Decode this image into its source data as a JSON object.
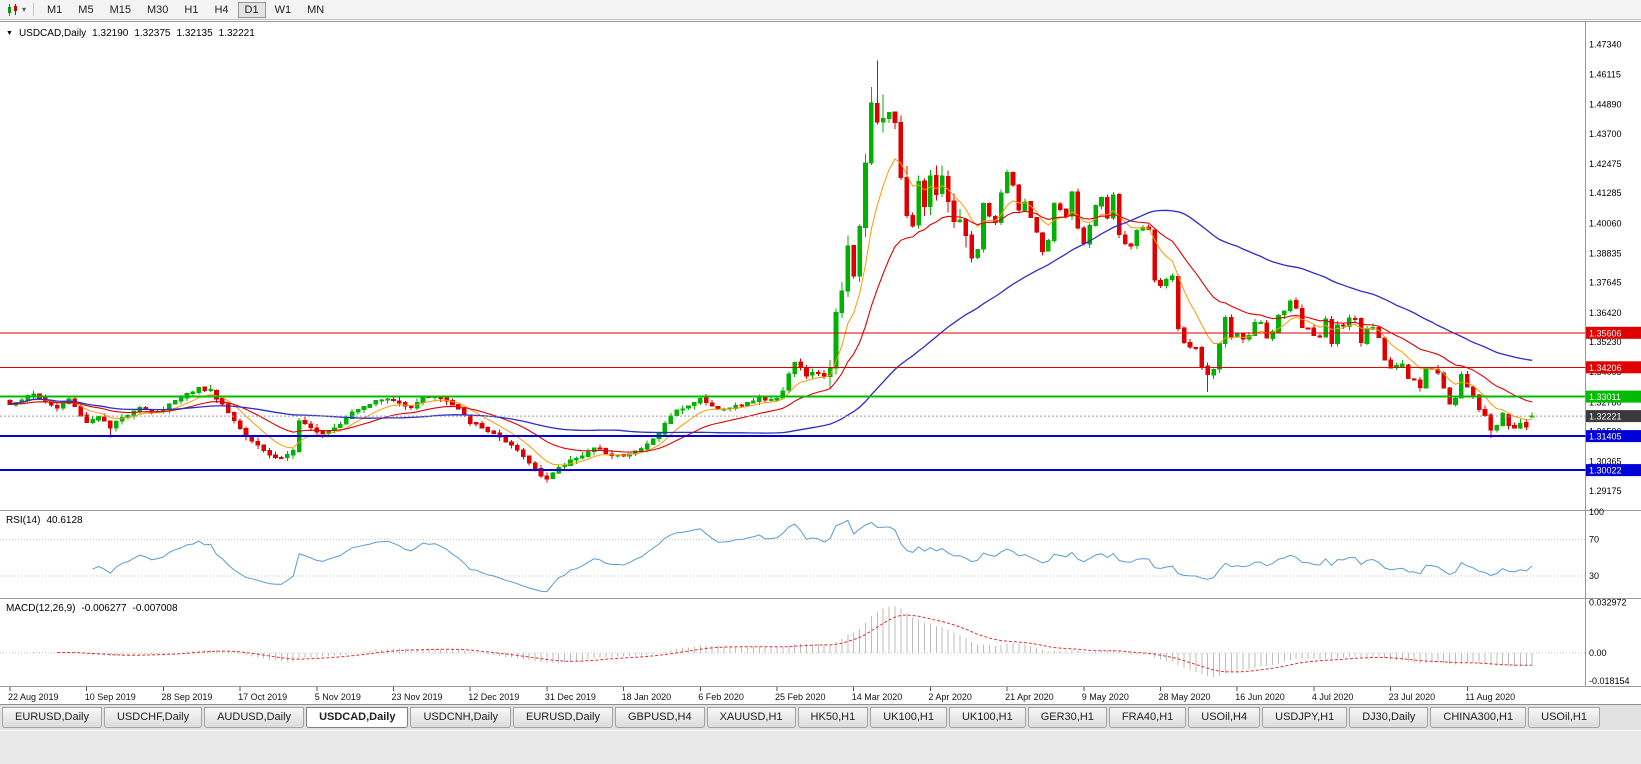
{
  "toolbar": {
    "timeframes": [
      {
        "label": "M1",
        "active": false
      },
      {
        "label": "M5",
        "active": false
      },
      {
        "label": "M15",
        "active": false
      },
      {
        "label": "M30",
        "active": false
      },
      {
        "label": "H1",
        "active": false
      },
      {
        "label": "H4",
        "active": false
      },
      {
        "label": "D1",
        "active": true
      },
      {
        "label": "W1",
        "active": false
      },
      {
        "label": "MN",
        "active": false
      }
    ]
  },
  "chart": {
    "title": {
      "symbol": "USDCAD,Daily",
      "open": "1.32190",
      "high": "1.32375",
      "low": "1.32135",
      "close": "1.32221"
    },
    "levels": [
      {
        "name": "resistance-upper",
        "value": 1.35606,
        "label": "1.35606",
        "color": "#E00000",
        "width": 1
      },
      {
        "name": "resistance-lower",
        "value": 1.34206,
        "label": "1.34206",
        "color": "#E00000",
        "width": 1
      },
      {
        "name": "pivot-green",
        "value": 1.33011,
        "label": "1.33011",
        "color": "#00BB00",
        "width": 2
      },
      {
        "name": "support-upper",
        "value": 1.31405,
        "label": "1.31405",
        "color": "#0000D8",
        "width": 2
      },
      {
        "name": "support-lower",
        "value": 1.30022,
        "label": "1.30022",
        "color": "#0000D8",
        "width": 2
      }
    ],
    "current_price": {
      "value": 1.32221,
      "label": "1.32221",
      "tag_color": "#3A3A3A"
    }
  },
  "rsi": {
    "label": "RSI(14)",
    "value": "40.6128",
    "scale": [
      "100",
      "70",
      "30"
    ],
    "levels": [
      70,
      30
    ],
    "line_color": "#5B9BD5"
  },
  "macd": {
    "label": "MACD(12,26,9)",
    "value_main": "-0.006277",
    "value_signal": "-0.007008",
    "scale": [
      "0.032972",
      "0.00",
      "-0.018154"
    ],
    "range": {
      "max": 0.0345,
      "min": -0.0215
    }
  },
  "tabs": [
    {
      "label": "EURUSD,Daily",
      "active": false
    },
    {
      "label": "USDCHF,Daily",
      "active": false
    },
    {
      "label": "AUDUSD,Daily",
      "active": false
    },
    {
      "label": "USDCAD,Daily",
      "active": true
    },
    {
      "label": "USDCNH,Daily",
      "active": false
    },
    {
      "label": "EURUSD,Daily",
      "active": false
    },
    {
      "label": "GBPUSD,H4",
      "active": false
    },
    {
      "label": "XAUUSD,H1",
      "active": false
    },
    {
      "label": "HK50,H1",
      "active": false
    },
    {
      "label": "UK100,H1",
      "active": false
    },
    {
      "label": "UK100,H1",
      "active": false
    },
    {
      "label": "GER30,H1",
      "active": false
    },
    {
      "label": "FRA40,H1",
      "active": false
    },
    {
      "label": "USOil,H4",
      "active": false
    },
    {
      "label": "USDJPY,H1",
      "active": false
    },
    {
      "label": "DJ30,Daily",
      "active": false
    },
    {
      "label": "CHINA300,H1",
      "active": false
    },
    {
      "label": "USOil,H1",
      "active": false
    }
  ],
  "chart_data": {
    "type": "candlestick",
    "title": "USDCAD,Daily",
    "symbol": "USDCAD",
    "timeframe": "Daily",
    "current_ohlc": {
      "open": 1.3219,
      "high": 1.32375,
      "low": 1.32135,
      "close": 1.32221
    },
    "candle_count": 259,
    "x_axis": {
      "labels": [
        "22 Aug 2019",
        "10 Sep 2019",
        "28 Sep 2019",
        "17 Oct 2019",
        "5 Nov 2019",
        "23 Nov 2019",
        "12 Dec 2019",
        "31 Dec 2019",
        "18 Jan 2020",
        "6 Feb 2020",
        "25 Feb 2020",
        "14 Mar 2020",
        "2 Apr 2020",
        "21 Apr 2020",
        "9 May 2020",
        "28 May 2020",
        "16 Jun 2020",
        "4 Jul 2020",
        "23 Jul 2020",
        "11 Aug 2020"
      ],
      "candles_per_label": 13
    },
    "y_axis": {
      "min": 1.284,
      "max": 1.4825,
      "tick_labels": [
        "1.47340",
        "1.46115",
        "1.44890",
        "1.43700",
        "1.42475",
        "1.41285",
        "1.40060",
        "1.38835",
        "1.37645",
        "1.36420",
        "1.35230",
        "1.34005",
        "1.32780",
        "1.31590",
        "1.30365",
        "1.29175"
      ]
    },
    "horizontal_levels": [
      1.35606,
      1.34206,
      1.33011,
      1.31405,
      1.30022
    ],
    "close_anchors": [
      [
        0,
        1.327
      ],
      [
        2,
        1.3292
      ],
      [
        4,
        1.331
      ],
      [
        6,
        1.328
      ],
      [
        8,
        1.3255
      ],
      [
        10,
        1.329
      ],
      [
        13,
        1.3196
      ],
      [
        15,
        1.3225
      ],
      [
        17,
        1.3172
      ],
      [
        19,
        1.3215
      ],
      [
        22,
        1.3262
      ],
      [
        24,
        1.3238
      ],
      [
        26,
        1.3245
      ],
      [
        28,
        1.329
      ],
      [
        30,
        1.3312
      ],
      [
        32,
        1.3335
      ],
      [
        34,
        1.3325
      ],
      [
        36,
        1.327
      ],
      [
        38,
        1.3205
      ],
      [
        40,
        1.3145
      ],
      [
        42,
        1.3108
      ],
      [
        44,
        1.3062
      ],
      [
        46,
        1.3052
      ],
      [
        48,
        1.3082
      ],
      [
        49,
        1.3198
      ],
      [
        51,
        1.3172
      ],
      [
        53,
        1.3155
      ],
      [
        56,
        1.3192
      ],
      [
        58,
        1.3242
      ],
      [
        60,
        1.3265
      ],
      [
        62,
        1.3282
      ],
      [
        64,
        1.3292
      ],
      [
        66,
        1.3275
      ],
      [
        68,
        1.3262
      ],
      [
        70,
        1.3298
      ],
      [
        72,
        1.3305
      ],
      [
        74,
        1.3282
      ],
      [
        76,
        1.3248
      ],
      [
        78,
        1.3198
      ],
      [
        80,
        1.3172
      ],
      [
        82,
        1.3152
      ],
      [
        84,
        1.3112
      ],
      [
        86,
        1.3082
      ],
      [
        88,
        1.3032
      ],
      [
        90,
        1.2985
      ],
      [
        91,
        1.2968
      ],
      [
        93,
        1.3008
      ],
      [
        95,
        1.3042
      ],
      [
        97,
        1.3065
      ],
      [
        99,
        1.3088
      ],
      [
        101,
        1.3075
      ],
      [
        104,
        1.3058
      ],
      [
        106,
        1.3078
      ],
      [
        108,
        1.3105
      ],
      [
        110,
        1.3152
      ],
      [
        112,
        1.3228
      ],
      [
        114,
        1.3258
      ],
      [
        117,
        1.329
      ],
      [
        119,
        1.3262
      ],
      [
        121,
        1.3248
      ],
      [
        123,
        1.3262
      ],
      [
        125,
        1.3278
      ],
      [
        127,
        1.3292
      ],
      [
        130,
        1.3295
      ],
      [
        131,
        1.3322
      ],
      [
        132,
        1.3388
      ],
      [
        133,
        1.3442
      ],
      [
        134,
        1.3415
      ],
      [
        135,
        1.3388
      ],
      [
        136,
        1.3402
      ],
      [
        138,
        1.338
      ],
      [
        139,
        1.342
      ],
      [
        140,
        1.366
      ],
      [
        141,
        1.373
      ],
      [
        142,
        1.393
      ],
      [
        143,
        1.38
      ],
      [
        144,
        1.3985
      ],
      [
        145,
        1.4245
      ],
      [
        146,
        1.4495
      ],
      [
        147,
        1.4435
      ],
      [
        148,
        1.443
      ],
      [
        149,
        1.4465
      ],
      [
        150,
        1.4435
      ],
      [
        151,
        1.418
      ],
      [
        152,
        1.4055
      ],
      [
        153,
        1.3985
      ],
      [
        154,
        1.4185
      ],
      [
        155,
        1.406
      ],
      [
        156,
        1.4215
      ],
      [
        157,
        1.4135
      ],
      [
        158,
        1.421
      ],
      [
        159,
        1.409
      ],
      [
        160,
        1.402
      ],
      [
        161,
        1.4015
      ],
      [
        162,
        1.396
      ],
      [
        163,
        1.386
      ],
      [
        164,
        1.3895
      ],
      [
        165,
        1.409
      ],
      [
        166,
        1.404
      ],
      [
        167,
        1.4005
      ],
      [
        168,
        1.4125
      ],
      [
        169,
        1.421
      ],
      [
        170,
        1.416
      ],
      [
        171,
        1.406
      ],
      [
        172,
        1.409
      ],
      [
        173,
        1.4035
      ],
      [
        174,
        1.3965
      ],
      [
        175,
        1.3885
      ],
      [
        176,
        1.394
      ],
      [
        177,
        1.409
      ],
      [
        178,
        1.407
      ],
      [
        179,
        1.4035
      ],
      [
        180,
        1.414
      ],
      [
        181,
        1.3985
      ],
      [
        182,
        1.3925
      ],
      [
        183,
        1.399
      ],
      [
        184,
        1.408
      ],
      [
        185,
        1.411
      ],
      [
        186,
        1.4035
      ],
      [
        187,
        1.4115
      ],
      [
        188,
        1.3965
      ],
      [
        189,
        1.3925
      ],
      [
        190,
        1.3915
      ],
      [
        191,
        1.3975
      ],
      [
        192,
        1.3995
      ],
      [
        193,
        1.3985
      ],
      [
        194,
        1.378
      ],
      [
        195,
        1.3755
      ],
      [
        196,
        1.3775
      ],
      [
        197,
        1.3785
      ],
      [
        198,
        1.358
      ],
      [
        199,
        1.3525
      ],
      [
        200,
        1.3505
      ],
      [
        201,
        1.3495
      ],
      [
        202,
        1.3425
      ],
      [
        203,
        1.3385
      ],
      [
        204,
        1.3415
      ],
      [
        206,
        1.362
      ],
      [
        207,
        1.3545
      ],
      [
        208,
        1.3555
      ],
      [
        209,
        1.3535
      ],
      [
        210,
        1.3545
      ],
      [
        211,
        1.3605
      ],
      [
        212,
        1.3605
      ],
      [
        213,
        1.3535
      ],
      [
        214,
        1.356
      ],
      [
        215,
        1.363
      ],
      [
        216,
        1.3645
      ],
      [
        217,
        1.3685
      ],
      [
        218,
        1.3665
      ],
      [
        219,
        1.3585
      ],
      [
        220,
        1.3575
      ],
      [
        221,
        1.355
      ],
      [
        222,
        1.3545
      ],
      [
        223,
        1.361
      ],
      [
        224,
        1.3515
      ],
      [
        225,
        1.359
      ],
      [
        226,
        1.3595
      ],
      [
        227,
        1.362
      ],
      [
        228,
        1.3615
      ],
      [
        229,
        1.3515
      ],
      [
        230,
        1.3575
      ],
      [
        231,
        1.3585
      ],
      [
        232,
        1.3535
      ],
      [
        233,
        1.3455
      ],
      [
        234,
        1.3415
      ],
      [
        235,
        1.3425
      ],
      [
        236,
        1.3435
      ],
      [
        237,
        1.3375
      ],
      [
        238,
        1.3365
      ],
      [
        239,
        1.3345
      ],
      [
        240,
        1.3425
      ],
      [
        241,
        1.341
      ],
      [
        242,
        1.339
      ],
      [
        243,
        1.3335
      ],
      [
        244,
        1.3265
      ],
      [
        245,
        1.3295
      ],
      [
        246,
        1.3385
      ],
      [
        247,
        1.3345
      ],
      [
        248,
        1.331
      ],
      [
        249,
        1.3255
      ],
      [
        250,
        1.3225
      ],
      [
        251,
        1.3165
      ],
      [
        252,
        1.3185
      ],
      [
        253,
        1.3225
      ],
      [
        254,
        1.3185
      ],
      [
        255,
        1.317
      ],
      [
        256,
        1.319
      ],
      [
        257,
        1.318
      ],
      [
        258,
        1.32221
      ]
    ],
    "overrides": {
      "open": {
        "258": 1.3219
      },
      "high": {
        "34": 1.3348,
        "146": 1.456,
        "147": 1.4668,
        "148": 1.453,
        "258": 1.32375
      },
      "low": {
        "17": 1.3135,
        "91": 1.2952,
        "203": 1.332,
        "251": 1.3133,
        "258": 1.32135
      },
      "close": {
        "258": 1.32221
      }
    },
    "indicators": {
      "rsi": {
        "period": 14,
        "last_value": 40.6128
      },
      "macd": {
        "fast": 12,
        "slow": 26,
        "signal": 9,
        "last_main": -0.006277,
        "last_signal": -0.007008
      },
      "moving_averages": [
        {
          "period": 8,
          "type": "ema",
          "color": "#FF9900"
        },
        {
          "period": 21,
          "type": "ema",
          "color": "#E00000"
        },
        {
          "period": 55,
          "type": "sma",
          "color": "#2D2DC8"
        }
      ]
    },
    "colors": {
      "up": "#00B200",
      "down": "#E00000"
    }
  }
}
